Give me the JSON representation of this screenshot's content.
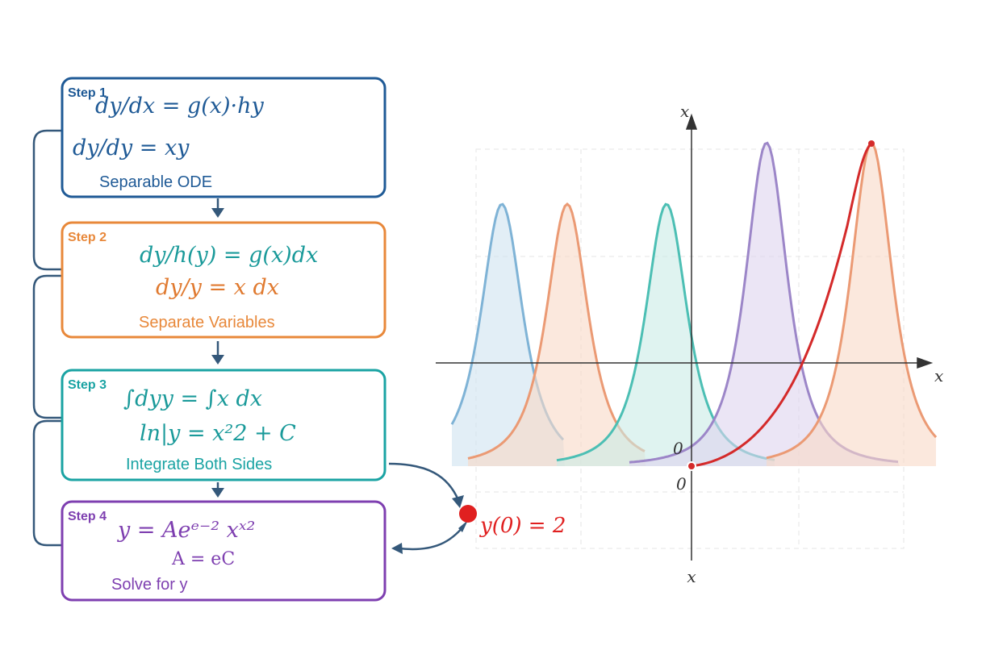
{
  "steps": [
    {
      "label": "Step 1",
      "lines": [
        "dy/dx = g(x)·hy",
        "dy/dy = xy"
      ],
      "caption": "Separable ODE"
    },
    {
      "label": "Step 2",
      "lines": [
        "dy/h(y) = g(x)dx",
        "dy/y = x dx"
      ],
      "caption": "Separate Variables"
    },
    {
      "label": "Step 3",
      "lines": [
        "∫dyy = ∫x dx",
        "ln|y = x²2 + C"
      ],
      "caption": "Integrate Both Sides"
    },
    {
      "label": "Step 4",
      "lines": [
        "y = Aeᵉ⁻² xˣ²",
        "A = eC"
      ],
      "caption": "Solve for y"
    }
  ],
  "graph": {
    "y_axis_label": "x",
    "x_axis_label": "x",
    "bottom_label": "x",
    "origin_labels": [
      "0",
      "0"
    ],
    "initial_condition": "y(0) = 2"
  }
}
